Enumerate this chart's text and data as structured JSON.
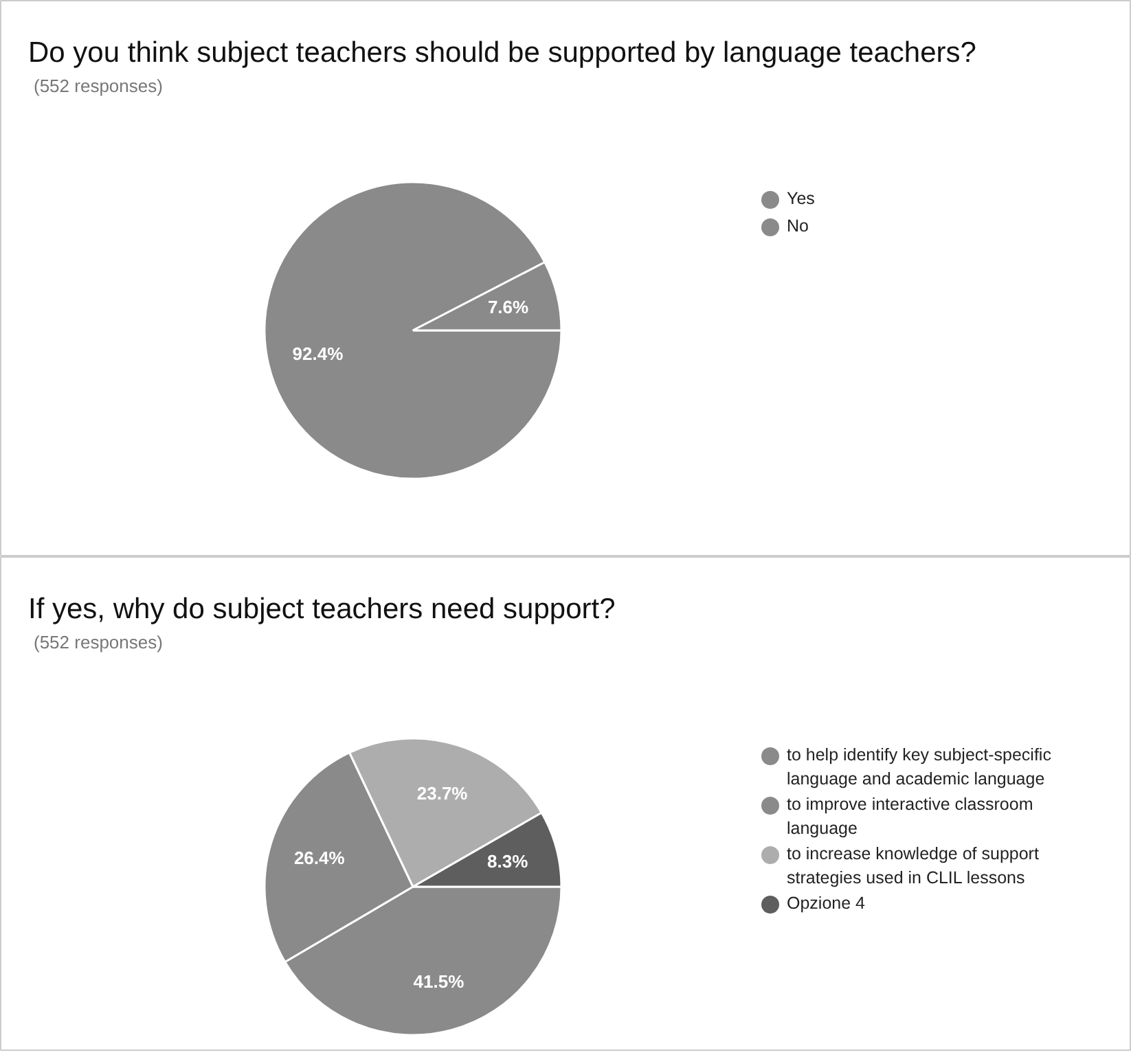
{
  "chart_data": [
    {
      "type": "pie",
      "title": "Do you think subject teachers should be supported by language teachers?",
      "subtitle": "(552 responses)",
      "categories": [
        "Yes",
        "No"
      ],
      "values": [
        92.4,
        7.6
      ],
      "colors": [
        "#8a8a8a",
        "#8a8a8a"
      ],
      "value_labels": [
        "92.4%",
        "7.6%"
      ],
      "legend": "right"
    },
    {
      "type": "pie",
      "title": "If yes, why do subject teachers need support?",
      "subtitle": "(552 responses)",
      "categories": [
        "to help identify key subject-specific language and academic language",
        "to improve interactive classroom language",
        "to increase knowledge of support strategies used in CLIL lessons",
        "Opzione 4"
      ],
      "values": [
        41.5,
        26.4,
        23.7,
        8.3
      ],
      "colors": [
        "#8a8a8a",
        "#8a8a8a",
        "#adadad",
        "#5e5e5e"
      ],
      "value_labels": [
        "41.5%",
        "26.4%",
        "23.7%",
        "8.3%"
      ],
      "legend": "right"
    }
  ]
}
